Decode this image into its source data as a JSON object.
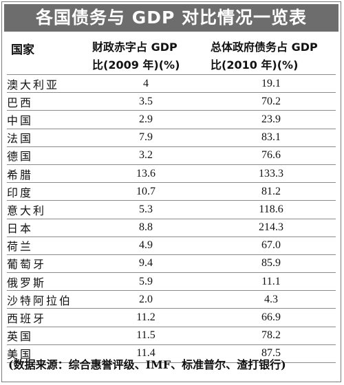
{
  "title": "各国债务与 GDP 对比情况一览表",
  "headers": {
    "country": "国家",
    "deficit_line1": "财政赤字占 GDP",
    "deficit_line2": "比(2009 年)(%)",
    "debt_line1": "总体政府债务占 GDP",
    "debt_line2": "比(2010 年)(%)"
  },
  "rows": [
    {
      "country": "澳大利亚",
      "deficit": "4",
      "debt": "19.1"
    },
    {
      "country": "巴西",
      "deficit": "3.5",
      "debt": "70.2"
    },
    {
      "country": "中国",
      "deficit": "2.9",
      "debt": "23.9"
    },
    {
      "country": "法国",
      "deficit": "7.9",
      "debt": "83.1"
    },
    {
      "country": "德国",
      "deficit": "3.2",
      "debt": "76.6"
    },
    {
      "country": "希腊",
      "deficit": "13.6",
      "debt": "133.3"
    },
    {
      "country": "印度",
      "deficit": "10.7",
      "debt": "81.2"
    },
    {
      "country": "意大利",
      "deficit": "5.3",
      "debt": "118.6"
    },
    {
      "country": "日本",
      "deficit": "8.8",
      "debt": "214.3"
    },
    {
      "country": "荷兰",
      "deficit": "4.9",
      "debt": "67.0"
    },
    {
      "country": "葡萄牙",
      "deficit": "9.4",
      "debt": "85.9"
    },
    {
      "country": "俄罗斯",
      "deficit": "5.9",
      "debt": "11.1"
    },
    {
      "country": "沙特阿拉伯",
      "deficit": "2.0",
      "debt": "4.3"
    },
    {
      "country": "西班牙",
      "deficit": "11.2",
      "debt": "66.9"
    },
    {
      "country": "英国",
      "deficit": "11.5",
      "debt": "78.2"
    },
    {
      "country": "美国",
      "deficit": "11.4",
      "debt": "87.5"
    }
  ],
  "footnote": "(数据来源：综合惠誉评级、IMF、标准普尔、渣打银行)",
  "colors": {
    "title_bg": "#6d6d6d",
    "title_text": "#ffffff",
    "rule": "#8a8a8a"
  }
}
